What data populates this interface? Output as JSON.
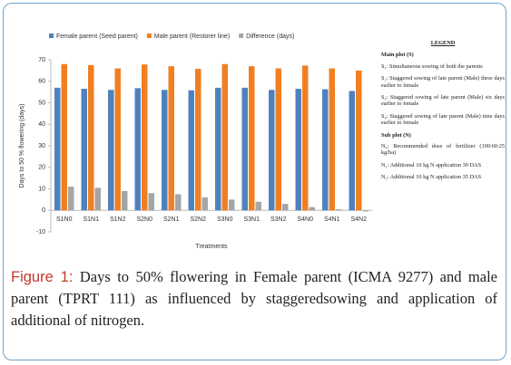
{
  "chart_data": {
    "type": "bar",
    "categories": [
      "S1N0",
      "S1N1",
      "S1N2",
      "S2N0",
      "S2N1",
      "S2N2",
      "S3N0",
      "S3N1",
      "S3N2",
      "S4N0",
      "S4N1",
      "S4N2"
    ],
    "series": [
      {
        "name": "Female parent (Seed parent)",
        "color": "#4f81bd",
        "values": [
          57,
          56.5,
          56,
          56.8,
          56,
          55.8,
          57,
          57,
          56,
          56.5,
          56.3,
          55.5
        ]
      },
      {
        "name": "Male parent (Restorer line)",
        "color": "#f07f22",
        "values": [
          68,
          67.5,
          66,
          67.8,
          67,
          65.8,
          68,
          67,
          66,
          67.3,
          66,
          65
        ]
      },
      {
        "name": "Difference (days)",
        "color": "#a5a5a5",
        "values": [
          11,
          10.5,
          9,
          8,
          7.5,
          6,
          5,
          4,
          3,
          1.5,
          0.5,
          -0.5
        ]
      }
    ],
    "ylim": [
      -10,
      70
    ],
    "yticks": [
      -10,
      0,
      10,
      20,
      30,
      40,
      50,
      60,
      70
    ],
    "ylabel": "Days to 50 % flowering (days)",
    "xlabel": "Treatments",
    "grid": false
  },
  "legend_panel": {
    "title": "LEGEND",
    "sections": [
      {
        "heading": "Main plot (S)",
        "items": [
          "S₁: Simultaneous sowing of both the parents",
          "S₂: Staggered sowing of late parent (Male) three days earlier to female",
          "S₃: Staggered sowing of late parent (Male) six days earlier to female",
          "S₄: Staggered sowing of late parent (Male) nine days earlier to female"
        ]
      },
      {
        "heading": "Sub plot (N)",
        "items": [
          "N₀: Recommended dose of fertilizer (100:60:25 kg/ha)",
          "N₁: Additional 10 kg N application 30 DAS",
          "N₂: Additional 10 kg N application 35 DAS"
        ]
      }
    ]
  },
  "caption": {
    "label": "Figure 1:",
    "text": "Days to 50% flowering in Female parent (ICMA 9277) and male parent (TPRT 111) as influenced by staggeredsowing and application of additional of nitrogen."
  }
}
